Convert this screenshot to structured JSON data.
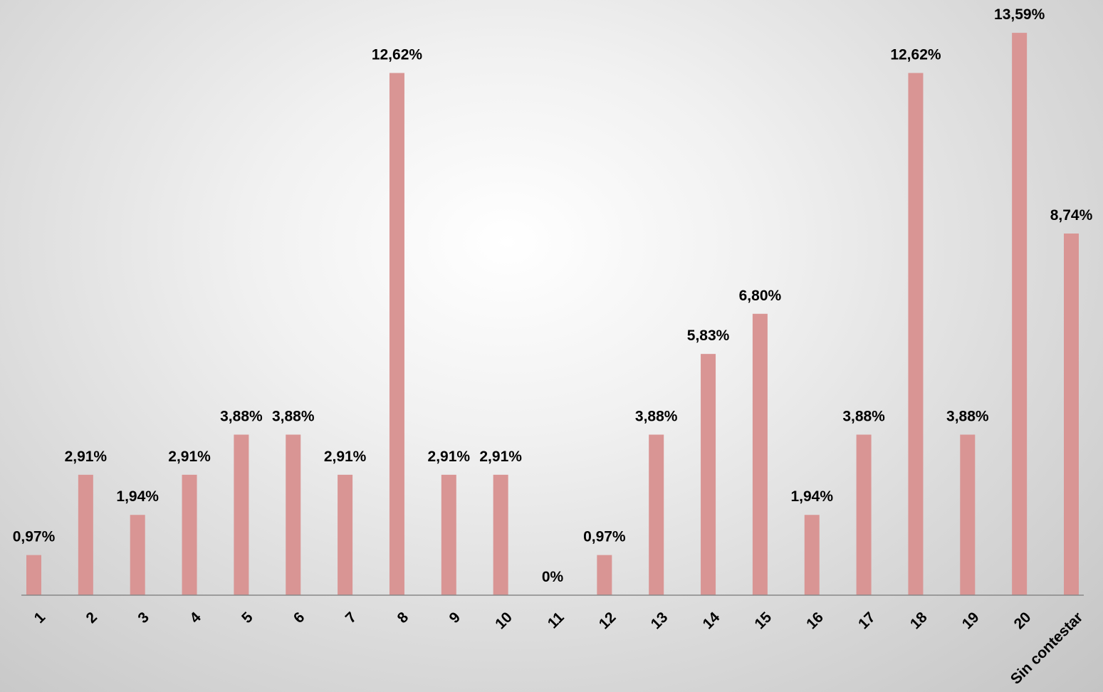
{
  "chart_data": {
    "type": "bar",
    "categories": [
      "1",
      "2",
      "3",
      "4",
      "5",
      "6",
      "7",
      "8",
      "9",
      "10",
      "11",
      "12",
      "13",
      "14",
      "15",
      "16",
      "17",
      "18",
      "19",
      "20",
      "Sin contestar"
    ],
    "values": [
      0.97,
      2.91,
      1.94,
      2.91,
      3.88,
      3.88,
      2.91,
      12.62,
      2.91,
      2.91,
      0,
      0.97,
      3.88,
      5.83,
      6.8,
      1.94,
      3.88,
      12.62,
      3.88,
      13.59,
      8.74
    ],
    "data_labels": [
      "0,97%",
      "2,91%",
      "1,94%",
      "2,91%",
      "3,88%",
      "3,88%",
      "2,91%",
      "12,62%",
      "2,91%",
      "2,91%",
      "0%",
      "0,97%",
      "3,88%",
      "5,83%",
      "6,80%",
      "1,94%",
      "3,88%",
      "12,62%",
      "3,88%",
      "13,59%",
      "8,74%"
    ],
    "title": "",
    "xlabel": "",
    "ylabel": "",
    "ylim": [
      0,
      14
    ],
    "grid": false,
    "legend": "none",
    "bar_color": "#d99594",
    "axis_color": "#888888"
  }
}
